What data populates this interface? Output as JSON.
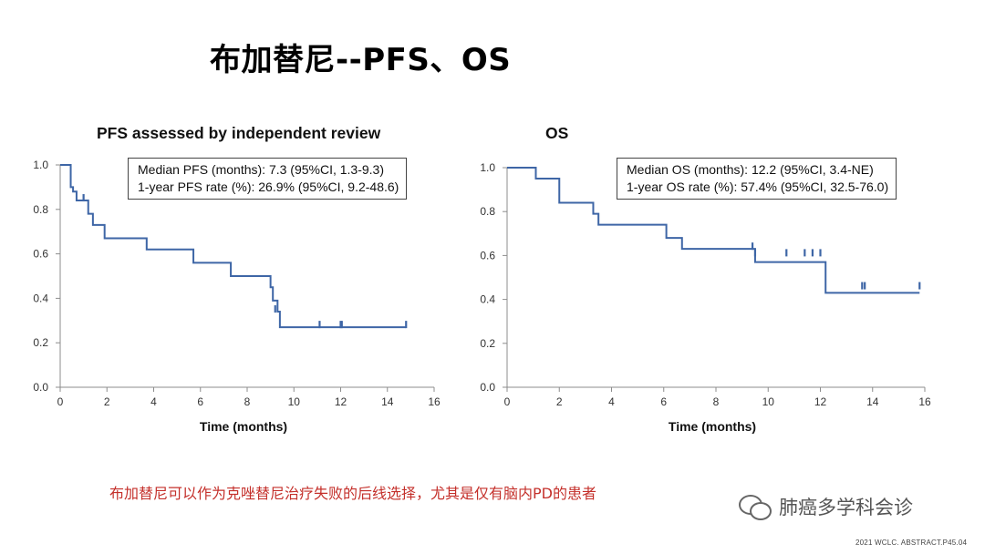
{
  "slide": {
    "title": "布加替尼--PFS、OS",
    "note": "布加替尼可以作为克唑替尼治疗失败的后线选择，尤其是仅有脑内PD的患者",
    "watermark": "肺癌多学科会诊",
    "source": "2021 WCLC. ABSTRACT.P45.04"
  },
  "chart_data": [
    {
      "type": "line",
      "title": "PFS assessed by independent review",
      "xlabel": "Time (months)",
      "ylabel": "",
      "xlim": [
        0,
        16
      ],
      "ylim": [
        0.0,
        1.0
      ],
      "x_ticks": [
        "0",
        "2",
        "4",
        "6",
        "8",
        "10",
        "12",
        "14",
        "16"
      ],
      "y_ticks": [
        "0.0",
        "0.2",
        "0.4",
        "0.6",
        "0.8",
        "1.0"
      ],
      "legend_lines": [
        "Median PFS (months): 7.3 (95%CI, 1.3-9.3)",
        "1-year PFS rate (%): 26.9% (95%CI, 9.2-48.6)"
      ],
      "step_x": [
        0,
        0.45,
        0.55,
        0.7,
        1.2,
        1.4,
        1.9,
        3.7,
        5.7,
        7.3,
        9.0,
        9.1,
        9.3,
        9.4,
        14.8
      ],
      "step_y": [
        1.0,
        0.9,
        0.88,
        0.84,
        0.78,
        0.73,
        0.67,
        0.62,
        0.56,
        0.5,
        0.45,
        0.39,
        0.34,
        0.27,
        0.27
      ],
      "censor_x": [
        1.0,
        9.2,
        11.1,
        12.0,
        12.05,
        14.8
      ],
      "censor_y": [
        0.84,
        0.34,
        0.27,
        0.27,
        0.27,
        0.27
      ],
      "grid": false
    },
    {
      "type": "line",
      "title": "OS",
      "xlabel": "Time (months)",
      "ylabel": "",
      "xlim": [
        0,
        16
      ],
      "ylim": [
        0.0,
        1.0
      ],
      "x_ticks": [
        "0",
        "2",
        "4",
        "6",
        "8",
        "10",
        "12",
        "14",
        "16"
      ],
      "y_ticks": [
        "0.0",
        "0.2",
        "0.4",
        "0.6",
        "0.8",
        "1.0"
      ],
      "legend_lines": [
        "Median OS (months): 12.2 (95%CI, 3.4-NE)",
        "1-year OS rate (%): 57.4% (95%CI, 32.5-76.0)"
      ],
      "step_x": [
        0,
        1.1,
        2.0,
        3.3,
        3.5,
        6.1,
        6.7,
        9.5,
        12.2,
        15.8
      ],
      "step_y": [
        1.0,
        0.95,
        0.84,
        0.79,
        0.74,
        0.68,
        0.63,
        0.57,
        0.43,
        0.43
      ],
      "censor_x": [
        9.4,
        9.5,
        10.7,
        11.4,
        11.7,
        12.0,
        13.6,
        13.7,
        15.8
      ],
      "censor_y": [
        0.63,
        0.6,
        0.6,
        0.6,
        0.6,
        0.6,
        0.45,
        0.45,
        0.45
      ],
      "grid": false
    }
  ],
  "colors": {
    "curve": "#3e66a6",
    "note": "#c4302b"
  }
}
